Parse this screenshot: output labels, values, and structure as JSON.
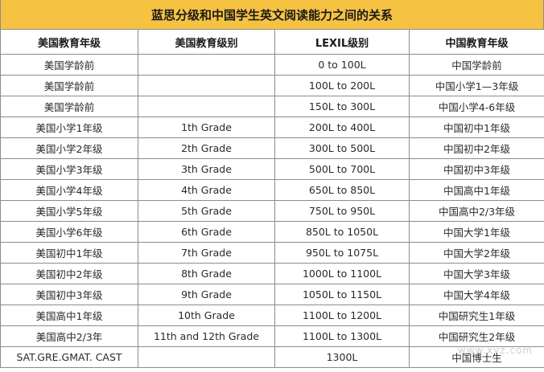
{
  "title": "蓝思分级和中国学生英文阅读能力之间的关系",
  "colors": {
    "title_bg": "#f5c242",
    "border": "#8c8c8c"
  },
  "headers": [
    "美国教育年级",
    "美国教育级别",
    "LEXIL级别",
    "中国教育年级"
  ],
  "rows": [
    [
      "美国学龄前",
      "",
      "0 to 100L",
      "中国学龄前"
    ],
    [
      "美国学龄前",
      "",
      "100L to 200L",
      "中国小学1—3年级"
    ],
    [
      "美国学龄前",
      "",
      "150L to 300L",
      "中国小学4-6年级"
    ],
    [
      "美国小学1年级",
      "1th Grade",
      "200L to 400L",
      "中国初中1年级"
    ],
    [
      "美国小学2年级",
      "2th Grade",
      "300L to 500L",
      "中国初中2年级"
    ],
    [
      "美国小学3年级",
      "3th Grade",
      "500L to 700L",
      "中国初中3年级"
    ],
    [
      "美国小学4年级",
      "4th Grade",
      "650L to 850L",
      "中国高中1年级"
    ],
    [
      "美国小学5年级",
      "5th Grade",
      "750L to 950L",
      "中国高中2/3年级"
    ],
    [
      "美国小学6年级",
      "6th Grade",
      "850L to 1050L",
      "中国大学1年级"
    ],
    [
      "美国初中1年级",
      "7th Grade",
      "950L to 1075L",
      "中国大学2年级"
    ],
    [
      "美国初中2年级",
      "8th Grade",
      "1000L to 1100L",
      "中国大学3年级"
    ],
    [
      "美国初中3年级",
      "9th Grade",
      "1050L to 1150L",
      "中国大学4年级"
    ],
    [
      "美国高中1年级",
      "10th Grade",
      "1100L to 1200L",
      "中国研究生1年级"
    ],
    [
      "美国高中2/3年",
      "11th and 12th Grade",
      "1100L to 1300L",
      "中国研究生2年级"
    ],
    [
      "SAT.GRE.GMAT. CAST",
      "",
      "1300L",
      "中国博士生"
    ]
  ],
  "watermark": "www.xyz.com"
}
